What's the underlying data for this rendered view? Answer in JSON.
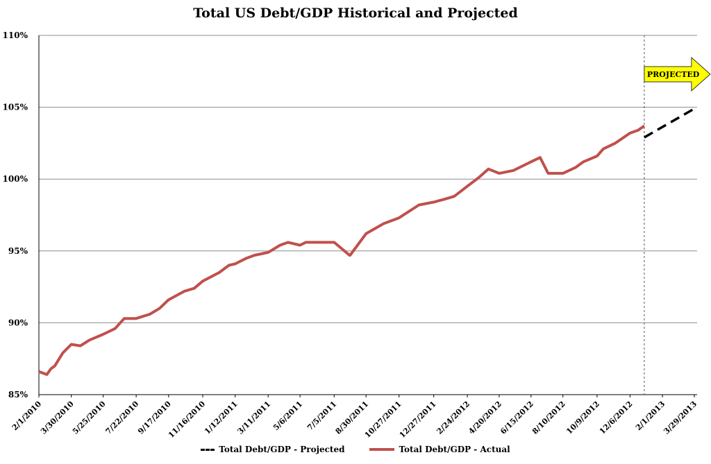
{
  "chart_data": {
    "type": "line",
    "title": "Total US Debt/GDP Historical and Projected",
    "xlabel": "",
    "ylabel": "",
    "ylim": [
      85,
      110
    ],
    "yticks": [
      "85%",
      "90%",
      "95%",
      "100%",
      "105%",
      "110%"
    ],
    "xticks": [
      "2/1/2010",
      "3/30/2010",
      "5/25/2010",
      "7/22/2010",
      "9/17/2010",
      "11/16/2010",
      "1/12/2011",
      "3/11/2011",
      "5/6/2011",
      "7/5/2011",
      "8/30/2011",
      "10/27/2011",
      "12/27/2011",
      "2/24/2012",
      "4/20/2012",
      "6/15/2012",
      "8/10/2012",
      "10/9/2012",
      "12/6/2012",
      "2/1/2013",
      "3/29/2013"
    ],
    "grid": true,
    "legend_position": "bottom",
    "series": [
      {
        "name": "Total Debt/GDP - Projected",
        "style": "dashed",
        "color": "#000000",
        "x": [
          "12/31/2012",
          "3/29/2013"
        ],
        "values": [
          102.9,
          104.9
        ]
      },
      {
        "name": "Total Debt/GDP - Actual",
        "style": "solid",
        "color": "#c0504d",
        "x": [
          "2/1/2010",
          "2/8/2010",
          "2/15/2010",
          "2/22/2010",
          "3/1/2010",
          "3/15/2010",
          "3/30/2010",
          "4/15/2010",
          "5/1/2010",
          "5/25/2010",
          "6/15/2010",
          "7/1/2010",
          "7/22/2010",
          "8/15/2010",
          "9/1/2010",
          "9/17/2010",
          "10/15/2010",
          "11/1/2010",
          "11/16/2010",
          "12/15/2010",
          "1/1/2011",
          "1/12/2011",
          "2/1/2011",
          "2/15/2011",
          "3/11/2011",
          "4/1/2011",
          "4/15/2011",
          "5/6/2011",
          "5/16/2011",
          "6/1/2011",
          "7/5/2011",
          "8/1/2011",
          "8/2/2011",
          "8/30/2011",
          "9/30/2011",
          "10/27/2011",
          "12/1/2011",
          "12/27/2011",
          "1/15/2012",
          "2/1/2012",
          "2/24/2012",
          "3/15/2012",
          "4/1/2012",
          "4/20/2012",
          "5/15/2012",
          "6/15/2012",
          "7/1/2012",
          "7/15/2012",
          "8/10/2012",
          "9/1/2012",
          "9/15/2012",
          "10/9/2012",
          "10/20/2012",
          "11/10/2012",
          "12/6/2012",
          "12/20/2012",
          "12/31/2012"
        ],
        "values": [
          86.6,
          86.5,
          86.4,
          86.8,
          87.0,
          87.9,
          88.5,
          88.4,
          88.8,
          89.2,
          89.6,
          90.3,
          90.3,
          90.6,
          91.0,
          91.6,
          92.2,
          92.4,
          92.9,
          93.5,
          94.0,
          94.1,
          94.5,
          94.7,
          94.9,
          95.4,
          95.6,
          95.4,
          95.6,
          95.6,
          95.6,
          94.7,
          94.7,
          96.2,
          96.9,
          97.3,
          98.2,
          98.4,
          98.6,
          98.8,
          99.5,
          100.1,
          100.7,
          100.4,
          100.6,
          101.2,
          101.5,
          100.4,
          100.4,
          100.8,
          101.2,
          101.6,
          102.1,
          102.5,
          103.2,
          103.4,
          103.7
        ]
      }
    ],
    "annotations": [
      {
        "text": "PROJECTED",
        "x": "12/31/2012",
        "y": 107.3
      }
    ]
  }
}
